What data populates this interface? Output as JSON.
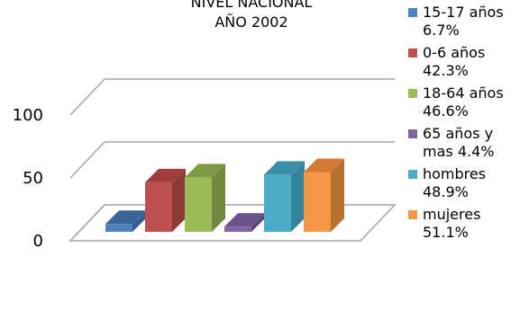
{
  "chart_data": {
    "type": "bar",
    "title_lines": [
      "NIVEL NACIONAL",
      "AÑO 2002"
    ],
    "categories": [
      "15-17 años",
      "0-6 años",
      "18-64 años",
      "65 años y mas",
      "hombres",
      "mujeres"
    ],
    "values": [
      6.7,
      42.3,
      46.6,
      4.4,
      48.9,
      51.1
    ],
    "ylim": [
      0,
      100
    ],
    "yticks": [
      "0",
      "50",
      "100"
    ],
    "grid": true,
    "legend_position": "right",
    "colors": [
      "#4F81BD",
      "#C0504D",
      "#9BBB59",
      "#8064A2",
      "#4BACC6",
      "#F79646"
    ],
    "side_colors": [
      "#365F91",
      "#8B3A37",
      "#71893F",
      "#5C4776",
      "#31849B",
      "#B8702F"
    ],
    "top_colors": [
      "#3A659A",
      "#9E3F3C",
      "#7E9A46",
      "#6A5388",
      "#3B8FA7",
      "#D07A33"
    ],
    "legend": [
      {
        "line1": "15-17 años",
        "line2": "6.7%"
      },
      {
        "line1": "0-6 años",
        "line2": "42.3%"
      },
      {
        "line1": "18-64 años",
        "line2": "46.6%"
      },
      {
        "line1": "65 años y",
        "line2": "mas 4.4%"
      },
      {
        "line1": "hombres",
        "line2": "48.9%"
      },
      {
        "line1": "mujeres",
        "line2": "51.1%"
      }
    ]
  }
}
